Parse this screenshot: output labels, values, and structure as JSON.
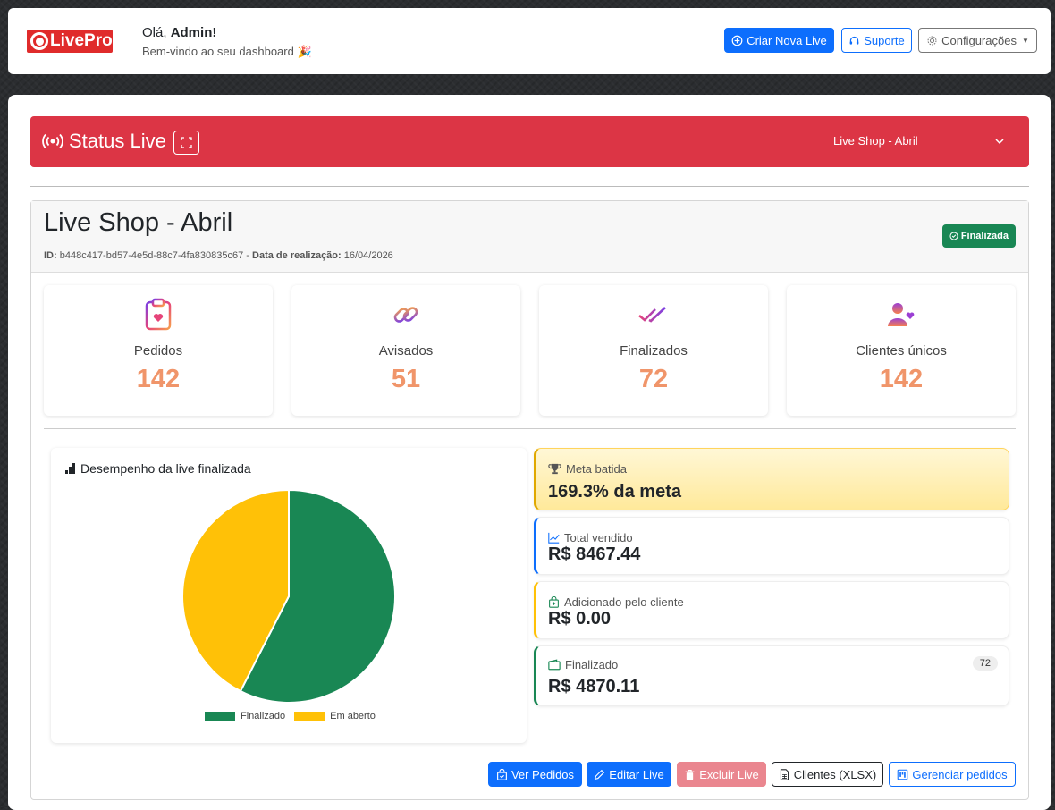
{
  "header": {
    "logo_text": "LivePro",
    "greeting_prefix": "Olá,",
    "greeting_name": "Admin!",
    "subtitle": "Bem-vindo ao seu dashboard 🎉",
    "buttons": {
      "create_live": "Criar Nova Live",
      "support": "Suporte",
      "settings": "Configurações"
    }
  },
  "status": {
    "title": "Status Live",
    "selected_live": "Live Shop - Abril"
  },
  "live": {
    "name": "Live Shop - Abril",
    "id_label": "ID:",
    "id": "b448c417-bd57-4e5d-88c7-4fa830835c67",
    "date_sep": " - ",
    "date_label": "Data de realização:",
    "date": "16/04/2026",
    "status_badge": "Finalizada"
  },
  "stats": [
    {
      "label": "Pedidos",
      "value": "142"
    },
    {
      "label": "Avisados",
      "value": "51"
    },
    {
      "label": "Finalizados",
      "value": "72"
    },
    {
      "label": "Clientes únicos",
      "value": "142"
    }
  ],
  "chart_data": {
    "type": "pie",
    "title": "Desempenho da live finalizada",
    "labels": [
      "Finalizado",
      "Em aberto"
    ],
    "values": [
      57.5,
      42.5
    ],
    "colors": [
      "#198754",
      "#ffc107"
    ],
    "legend": "bottom"
  },
  "kpis": {
    "meta": {
      "label": "Meta batida",
      "value": "169.3% da meta"
    },
    "total": {
      "label": "Total vendido",
      "value": "R$ 8467.44"
    },
    "added": {
      "label": "Adicionado pelo cliente",
      "value": "R$ 0.00"
    },
    "finalized": {
      "label": "Finalizado",
      "value": "R$ 4870.11",
      "count": "72"
    }
  },
  "actions": {
    "view_orders": "Ver Pedidos",
    "edit": "Editar Live",
    "delete": "Excluir Live",
    "clients": "Clientes (XLSX)",
    "manage": "Gerenciar pedidos"
  }
}
